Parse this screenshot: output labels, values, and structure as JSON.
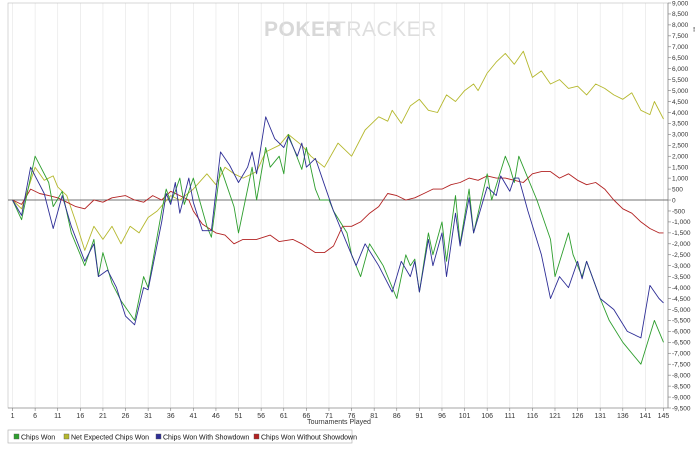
{
  "watermark": {
    "part1": "POKER",
    "part2": "TRACKER"
  },
  "chart_data": {
    "type": "line",
    "xlabel": "Tournaments Played",
    "ylabel": "",
    "xlim": [
      0,
      146
    ],
    "ylim": [
      -9500,
      9000
    ],
    "x_ticks": [
      1,
      6,
      11,
      16,
      21,
      26,
      31,
      36,
      41,
      46,
      51,
      56,
      61,
      66,
      71,
      76,
      81,
      86,
      91,
      96,
      101,
      106,
      111,
      116,
      121,
      126,
      131,
      136,
      141,
      145
    ],
    "y_ticks": [
      9000,
      8500,
      8000,
      7500,
      7000,
      6500,
      6000,
      5500,
      5000,
      4500,
      4000,
      3500,
      3000,
      2500,
      2000,
      1500,
      1000,
      500,
      0,
      -500,
      -1000,
      -1500,
      -2000,
      -2500,
      -3000,
      -3500,
      -4000,
      -4500,
      -5000,
      -5500,
      -6000,
      -6500,
      -7000,
      -7500,
      -8000,
      -8500,
      -9000,
      -9500
    ],
    "y_tick_labels": [
      "9,000",
      "8,500",
      "8,000",
      "7,500",
      "7,000",
      "6,500",
      "6,000",
      "5,500",
      "5,000",
      "4,500",
      "4,000",
      "3,500",
      "3,000",
      "2,500",
      "2,000",
      "1,500",
      "1,000",
      "500",
      "0",
      "-500",
      "-1,000",
      "-1,500",
      "-2,000",
      "-2,500",
      "-3,000",
      "-3,500",
      "-4,000",
      "-4,500",
      "-5,000",
      "-5,500",
      "-6,000",
      "-6,500",
      "-7,000",
      "-7,500",
      "-8,000",
      "-8,500",
      "-9,000",
      "-9,500"
    ],
    "grid": "vertical",
    "legend_position": "bottom-left",
    "series": [
      {
        "name": "Chips Won",
        "color": "#2e9e2e",
        "points": [
          [
            1,
            0
          ],
          [
            3,
            -900
          ],
          [
            6,
            2000
          ],
          [
            9,
            800
          ],
          [
            10,
            -300
          ],
          [
            12,
            400
          ],
          [
            14,
            -1500
          ],
          [
            17,
            -3000
          ],
          [
            19,
            -1800
          ],
          [
            20,
            -3500
          ],
          [
            21,
            -2400
          ],
          [
            23,
            -3800
          ],
          [
            25,
            -4600
          ],
          [
            28,
            -5500
          ],
          [
            30,
            -3500
          ],
          [
            31,
            -4000
          ],
          [
            34,
            -500
          ],
          [
            35,
            500
          ],
          [
            36,
            -100
          ],
          [
            37,
            400
          ],
          [
            38,
            1000
          ],
          [
            39,
            -200
          ],
          [
            41,
            1000
          ],
          [
            44,
            -1200
          ],
          [
            45,
            -1700
          ],
          [
            47,
            1500
          ],
          [
            50,
            -300
          ],
          [
            51,
            -1500
          ],
          [
            53,
            500
          ],
          [
            54,
            1500
          ],
          [
            55,
            0
          ],
          [
            57,
            2400
          ],
          [
            58,
            1500
          ],
          [
            60,
            2000
          ],
          [
            61,
            1200
          ],
          [
            62,
            3000
          ],
          [
            65,
            1400
          ],
          [
            66,
            2400
          ],
          [
            68,
            500
          ],
          [
            69,
            0
          ],
          [
            71,
            0
          ],
          [
            72,
            -500
          ],
          [
            75,
            -1500
          ],
          [
            76,
            -2500
          ],
          [
            78,
            -3500
          ],
          [
            80,
            -2000
          ],
          [
            83,
            -3000
          ],
          [
            86,
            -4500
          ],
          [
            88,
            -2500
          ],
          [
            89,
            -3000
          ],
          [
            90,
            -2700
          ],
          [
            91,
            -4200
          ],
          [
            93,
            -1500
          ],
          [
            94,
            -2500
          ],
          [
            96,
            -1000
          ],
          [
            97,
            -2800
          ],
          [
            99,
            200
          ],
          [
            100,
            -2000
          ],
          [
            102,
            500
          ],
          [
            103,
            -1500
          ],
          [
            106,
            1200
          ],
          [
            107,
            0
          ],
          [
            110,
            2000
          ],
          [
            111,
            1500
          ],
          [
            112,
            800
          ],
          [
            113,
            2000
          ],
          [
            117,
            0
          ],
          [
            120,
            -1800
          ],
          [
            121,
            -3500
          ],
          [
            124,
            -1500
          ],
          [
            125,
            -2500
          ],
          [
            127,
            -3500
          ],
          [
            128,
            -2800
          ],
          [
            131,
            -4500
          ],
          [
            133,
            -5500
          ],
          [
            136,
            -6500
          ],
          [
            140,
            -7500
          ],
          [
            143,
            -5500
          ],
          [
            145,
            -6500
          ]
        ]
      },
      {
        "name": "Net Expected Chips Won",
        "color": "#b5b82e",
        "points": [
          [
            1,
            0
          ],
          [
            3,
            -400
          ],
          [
            6,
            1500
          ],
          [
            8,
            900
          ],
          [
            10,
            1100
          ],
          [
            11,
            600
          ],
          [
            13,
            200
          ],
          [
            15,
            -1000
          ],
          [
            17,
            -2300
          ],
          [
            19,
            -1200
          ],
          [
            21,
            -1800
          ],
          [
            23,
            -1200
          ],
          [
            25,
            -2000
          ],
          [
            27,
            -1200
          ],
          [
            29,
            -1500
          ],
          [
            31,
            -800
          ],
          [
            33,
            -500
          ],
          [
            36,
            200
          ],
          [
            38,
            0
          ],
          [
            41,
            500
          ],
          [
            44,
            1200
          ],
          [
            46,
            700
          ],
          [
            48,
            1500
          ],
          [
            50,
            1200
          ],
          [
            52,
            1000
          ],
          [
            55,
            1300
          ],
          [
            57,
            2200
          ],
          [
            60,
            2500
          ],
          [
            62,
            3000
          ],
          [
            65,
            2500
          ],
          [
            67,
            2000
          ],
          [
            70,
            1500
          ],
          [
            73,
            2600
          ],
          [
            76,
            2000
          ],
          [
            79,
            3200
          ],
          [
            82,
            3800
          ],
          [
            84,
            3600
          ],
          [
            85,
            4100
          ],
          [
            87,
            3500
          ],
          [
            89,
            4300
          ],
          [
            91,
            4600
          ],
          [
            93,
            4100
          ],
          [
            95,
            4000
          ],
          [
            97,
            4800
          ],
          [
            99,
            4500
          ],
          [
            101,
            5000
          ],
          [
            103,
            5300
          ],
          [
            104,
            5000
          ],
          [
            106,
            5800
          ],
          [
            108,
            6300
          ],
          [
            110,
            6700
          ],
          [
            112,
            6200
          ],
          [
            114,
            6800
          ],
          [
            116,
            5600
          ],
          [
            118,
            5900
          ],
          [
            120,
            5300
          ],
          [
            122,
            5500
          ],
          [
            124,
            5100
          ],
          [
            126,
            5200
          ],
          [
            128,
            4800
          ],
          [
            130,
            5300
          ],
          [
            132,
            5100
          ],
          [
            134,
            4800
          ],
          [
            136,
            4600
          ],
          [
            138,
            4900
          ],
          [
            140,
            4100
          ],
          [
            142,
            3900
          ],
          [
            143,
            4500
          ],
          [
            145,
            3700
          ]
        ]
      },
      {
        "name": "Chips Won With Showdown",
        "color": "#2e2e96",
        "points": [
          [
            1,
            0
          ],
          [
            3,
            -700
          ],
          [
            5,
            1500
          ],
          [
            8,
            300
          ],
          [
            10,
            -1300
          ],
          [
            12,
            200
          ],
          [
            14,
            -1200
          ],
          [
            17,
            -2800
          ],
          [
            19,
            -2000
          ],
          [
            20,
            -3500
          ],
          [
            22,
            -3200
          ],
          [
            24,
            -4000
          ],
          [
            26,
            -5300
          ],
          [
            28,
            -5700
          ],
          [
            30,
            -4000
          ],
          [
            31,
            -4100
          ],
          [
            34,
            -1000
          ],
          [
            35,
            300
          ],
          [
            36,
            -200
          ],
          [
            37,
            800
          ],
          [
            38,
            -600
          ],
          [
            40,
            1000
          ],
          [
            41,
            -100
          ],
          [
            43,
            -1400
          ],
          [
            45,
            -1400
          ],
          [
            47,
            2200
          ],
          [
            49,
            1600
          ],
          [
            51,
            800
          ],
          [
            53,
            1500
          ],
          [
            54,
            2200
          ],
          [
            55,
            1200
          ],
          [
            57,
            3800
          ],
          [
            59,
            2800
          ],
          [
            61,
            2400
          ],
          [
            62,
            2900
          ],
          [
            64,
            2000
          ],
          [
            65,
            2600
          ],
          [
            66,
            1500
          ],
          [
            68,
            1900
          ],
          [
            70,
            700
          ],
          [
            72,
            -500
          ],
          [
            75,
            -2000
          ],
          [
            77,
            -3000
          ],
          [
            79,
            -2000
          ],
          [
            82,
            -3000
          ],
          [
            85,
            -4200
          ],
          [
            87,
            -2800
          ],
          [
            89,
            -3500
          ],
          [
            90,
            -2800
          ],
          [
            91,
            -4200
          ],
          [
            93,
            -1800
          ],
          [
            94,
            -3000
          ],
          [
            96,
            -1500
          ],
          [
            97,
            -3500
          ],
          [
            99,
            -600
          ],
          [
            100,
            -2100
          ],
          [
            102,
            100
          ],
          [
            103,
            -1500
          ],
          [
            106,
            600
          ],
          [
            108,
            200
          ],
          [
            109,
            1100
          ],
          [
            111,
            400
          ],
          [
            112,
            1000
          ],
          [
            113,
            1000
          ],
          [
            115,
            -500
          ],
          [
            118,
            -2500
          ],
          [
            120,
            -4500
          ],
          [
            122,
            -3500
          ],
          [
            124,
            -4000
          ],
          [
            126,
            -2800
          ],
          [
            127,
            -3600
          ],
          [
            128,
            -2800
          ],
          [
            131,
            -4500
          ],
          [
            134,
            -5000
          ],
          [
            137,
            -6000
          ],
          [
            140,
            -6300
          ],
          [
            142,
            -3900
          ],
          [
            144,
            -4500
          ],
          [
            145,
            -4700
          ]
        ]
      },
      {
        "name": "Chips Won Without Showdown",
        "color": "#b22222",
        "points": [
          [
            1,
            0
          ],
          [
            3,
            -200
          ],
          [
            5,
            500
          ],
          [
            7,
            300
          ],
          [
            9,
            200
          ],
          [
            11,
            100
          ],
          [
            13,
            -100
          ],
          [
            15,
            -300
          ],
          [
            17,
            -400
          ],
          [
            19,
            0
          ],
          [
            21,
            -100
          ],
          [
            23,
            100
          ],
          [
            26,
            200
          ],
          [
            28,
            0
          ],
          [
            30,
            -100
          ],
          [
            32,
            200
          ],
          [
            34,
            0
          ],
          [
            36,
            400
          ],
          [
            38,
            200
          ],
          [
            40,
            0
          ],
          [
            41,
            -500
          ],
          [
            43,
            -1100
          ],
          [
            46,
            -1500
          ],
          [
            48,
            -1600
          ],
          [
            50,
            -2000
          ],
          [
            52,
            -1800
          ],
          [
            55,
            -1800
          ],
          [
            58,
            -1600
          ],
          [
            60,
            -1900
          ],
          [
            63,
            -1800
          ],
          [
            65,
            -2000
          ],
          [
            68,
            -2400
          ],
          [
            70,
            -2400
          ],
          [
            72,
            -2100
          ],
          [
            74,
            -1200
          ],
          [
            76,
            -1200
          ],
          [
            78,
            -1000
          ],
          [
            80,
            -600
          ],
          [
            82,
            -300
          ],
          [
            84,
            300
          ],
          [
            86,
            200
          ],
          [
            88,
            0
          ],
          [
            90,
            100
          ],
          [
            92,
            300
          ],
          [
            94,
            500
          ],
          [
            96,
            500
          ],
          [
            98,
            700
          ],
          [
            100,
            800
          ],
          [
            102,
            1000
          ],
          [
            104,
            900
          ],
          [
            106,
            1100
          ],
          [
            108,
            1000
          ],
          [
            110,
            1000
          ],
          [
            112,
            900
          ],
          [
            114,
            800
          ],
          [
            116,
            1200
          ],
          [
            118,
            1300
          ],
          [
            120,
            1300
          ],
          [
            122,
            1000
          ],
          [
            124,
            1200
          ],
          [
            126,
            900
          ],
          [
            128,
            700
          ],
          [
            130,
            800
          ],
          [
            132,
            500
          ],
          [
            134,
            0
          ],
          [
            136,
            -400
          ],
          [
            138,
            -600
          ],
          [
            140,
            -1000
          ],
          [
            142,
            -1300
          ],
          [
            144,
            -1500
          ],
          [
            145,
            -1500
          ]
        ]
      }
    ]
  }
}
